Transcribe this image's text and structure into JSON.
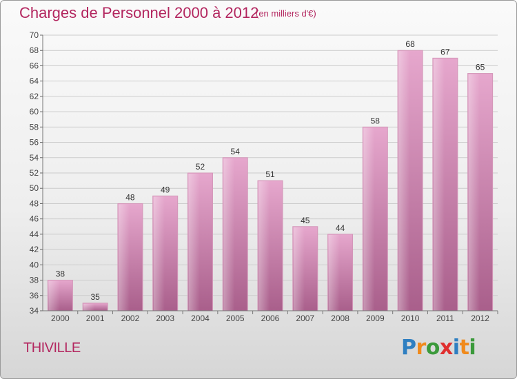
{
  "header": {
    "title": "Charges de Personnel 2000 à 2012",
    "subtitle": "(en milliers d'€)"
  },
  "commune": "THIVILLE",
  "logo": {
    "text": "Proxiti",
    "letters": [
      {
        "char": "P",
        "color": "#2f7fc1"
      },
      {
        "char": "r",
        "color": "#f08a1c"
      },
      {
        "char": "o",
        "color": "#3b9a3b"
      },
      {
        "char": "x",
        "color": "#e02f2f"
      },
      {
        "char": "i",
        "color": "#2f7fc1"
      },
      {
        "char": "t",
        "color": "#f08a1c"
      },
      {
        "char": "i",
        "color": "#3b9a3b"
      }
    ]
  },
  "chart_data": {
    "type": "bar",
    "categories": [
      "2000",
      "2001",
      "2002",
      "2003",
      "2004",
      "2005",
      "2006",
      "2007",
      "2008",
      "2009",
      "2010",
      "2011",
      "2012"
    ],
    "values": [
      38,
      35,
      48,
      49,
      52,
      54,
      51,
      45,
      44,
      58,
      68,
      67,
      65
    ],
    "ylim": [
      34,
      70
    ],
    "yticks": [
      34,
      36,
      38,
      40,
      42,
      44,
      46,
      48,
      50,
      52,
      54,
      56,
      58,
      60,
      62,
      64,
      66,
      68,
      70
    ],
    "grid": true,
    "bar_color": "#c1679a"
  }
}
